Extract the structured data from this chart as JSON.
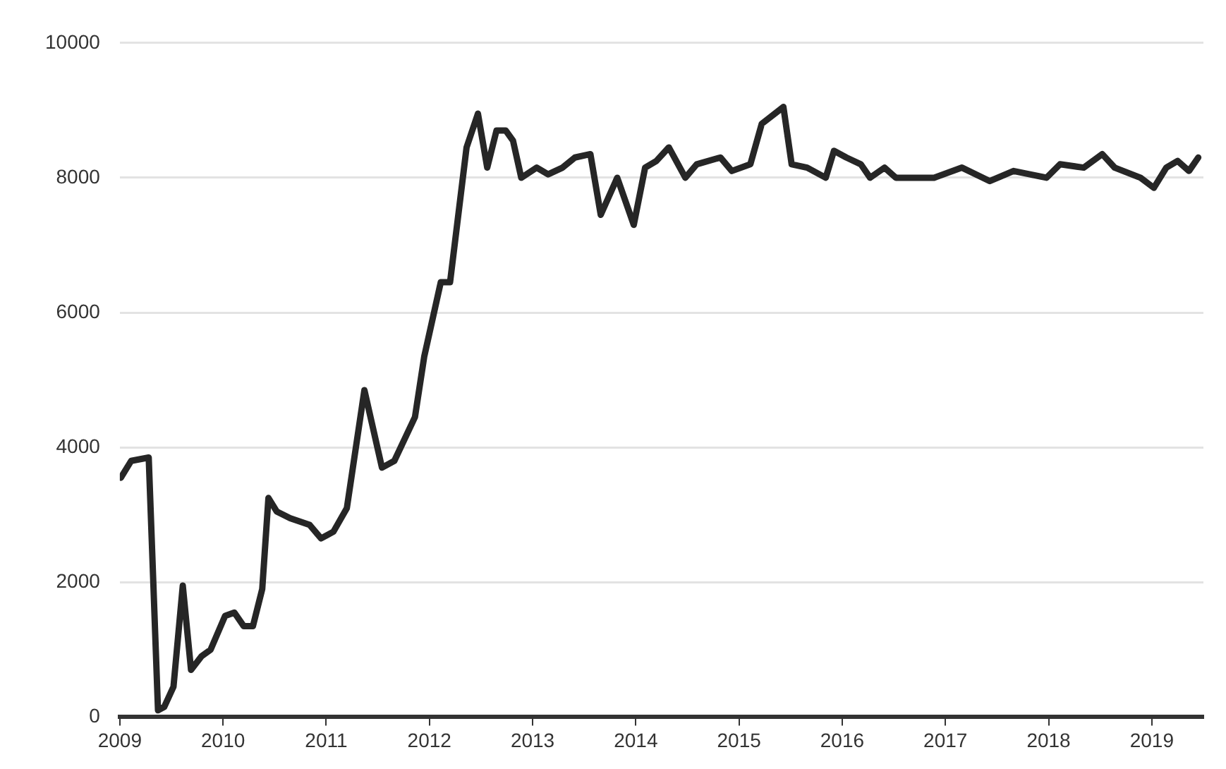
{
  "chart_data": {
    "type": "line",
    "x": [
      2009.01,
      2009.11,
      2009.28,
      2009.37,
      2009.43,
      2009.52,
      2009.61,
      2009.69,
      2009.79,
      2009.88,
      2010.02,
      2010.11,
      2010.2,
      2010.29,
      2010.38,
      2010.44,
      2010.52,
      2010.65,
      2010.84,
      2010.95,
      2011.07,
      2011.2,
      2011.37,
      2011.54,
      2011.66,
      2011.86,
      2011.95,
      2012.11,
      2012.2,
      2012.36,
      2012.47,
      2012.56,
      2012.65,
      2012.74,
      2012.81,
      2012.89,
      2013.04,
      2013.15,
      2013.29,
      2013.41,
      2013.56,
      2013.66,
      2013.82,
      2013.98,
      2014.09,
      2014.2,
      2014.32,
      2014.48,
      2014.59,
      2014.82,
      2014.93,
      2015.11,
      2015.22,
      2015.43,
      2015.51,
      2015.66,
      2015.84,
      2015.92,
      2016.04,
      2016.18,
      2016.27,
      2016.41,
      2016.52,
      2016.89,
      2017.16,
      2017.43,
      2017.66,
      2017.98,
      2018.11,
      2018.34,
      2018.52,
      2018.64,
      2018.89,
      2019.02,
      2019.14,
      2019.25,
      2019.36,
      2019.45
    ],
    "series": [
      {
        "color": "#262626",
        "values": [
          3550,
          3800,
          3850,
          100,
          150,
          450,
          1950,
          700,
          900,
          1000,
          1500,
          1550,
          1350,
          1350,
          1900,
          3250,
          3050,
          2950,
          2850,
          2650,
          2750,
          3100,
          4850,
          3700,
          3800,
          4450,
          5350,
          6450,
          6450,
          8450,
          8950,
          8150,
          8700,
          8700,
          8550,
          8000,
          8150,
          8050,
          8150,
          8300,
          8350,
          7450,
          8000,
          7300,
          8150,
          8250,
          8450,
          8000,
          8200,
          8300,
          8100,
          8200,
          8800,
          9050,
          8200,
          8150,
          8000,
          8400,
          8300,
          8200,
          8000,
          8150,
          8000,
          8000,
          8150,
          7950,
          8100,
          8000,
          8200,
          8150,
          8350,
          8150,
          8000,
          7850,
          8150,
          8250,
          8100,
          8300
        ]
      }
    ],
    "xlim": [
      2009,
      2019.5
    ],
    "xticks": [
      2009,
      2010,
      2011,
      2012,
      2013,
      2014,
      2015,
      2016,
      2017,
      2018,
      2019
    ],
    "ylim": [
      0,
      10000
    ],
    "yticks": [
      0,
      2000,
      4000,
      6000,
      8000,
      10000
    ],
    "grid": "y",
    "legend": false,
    "marker": "none",
    "line_style": "solid"
  }
}
